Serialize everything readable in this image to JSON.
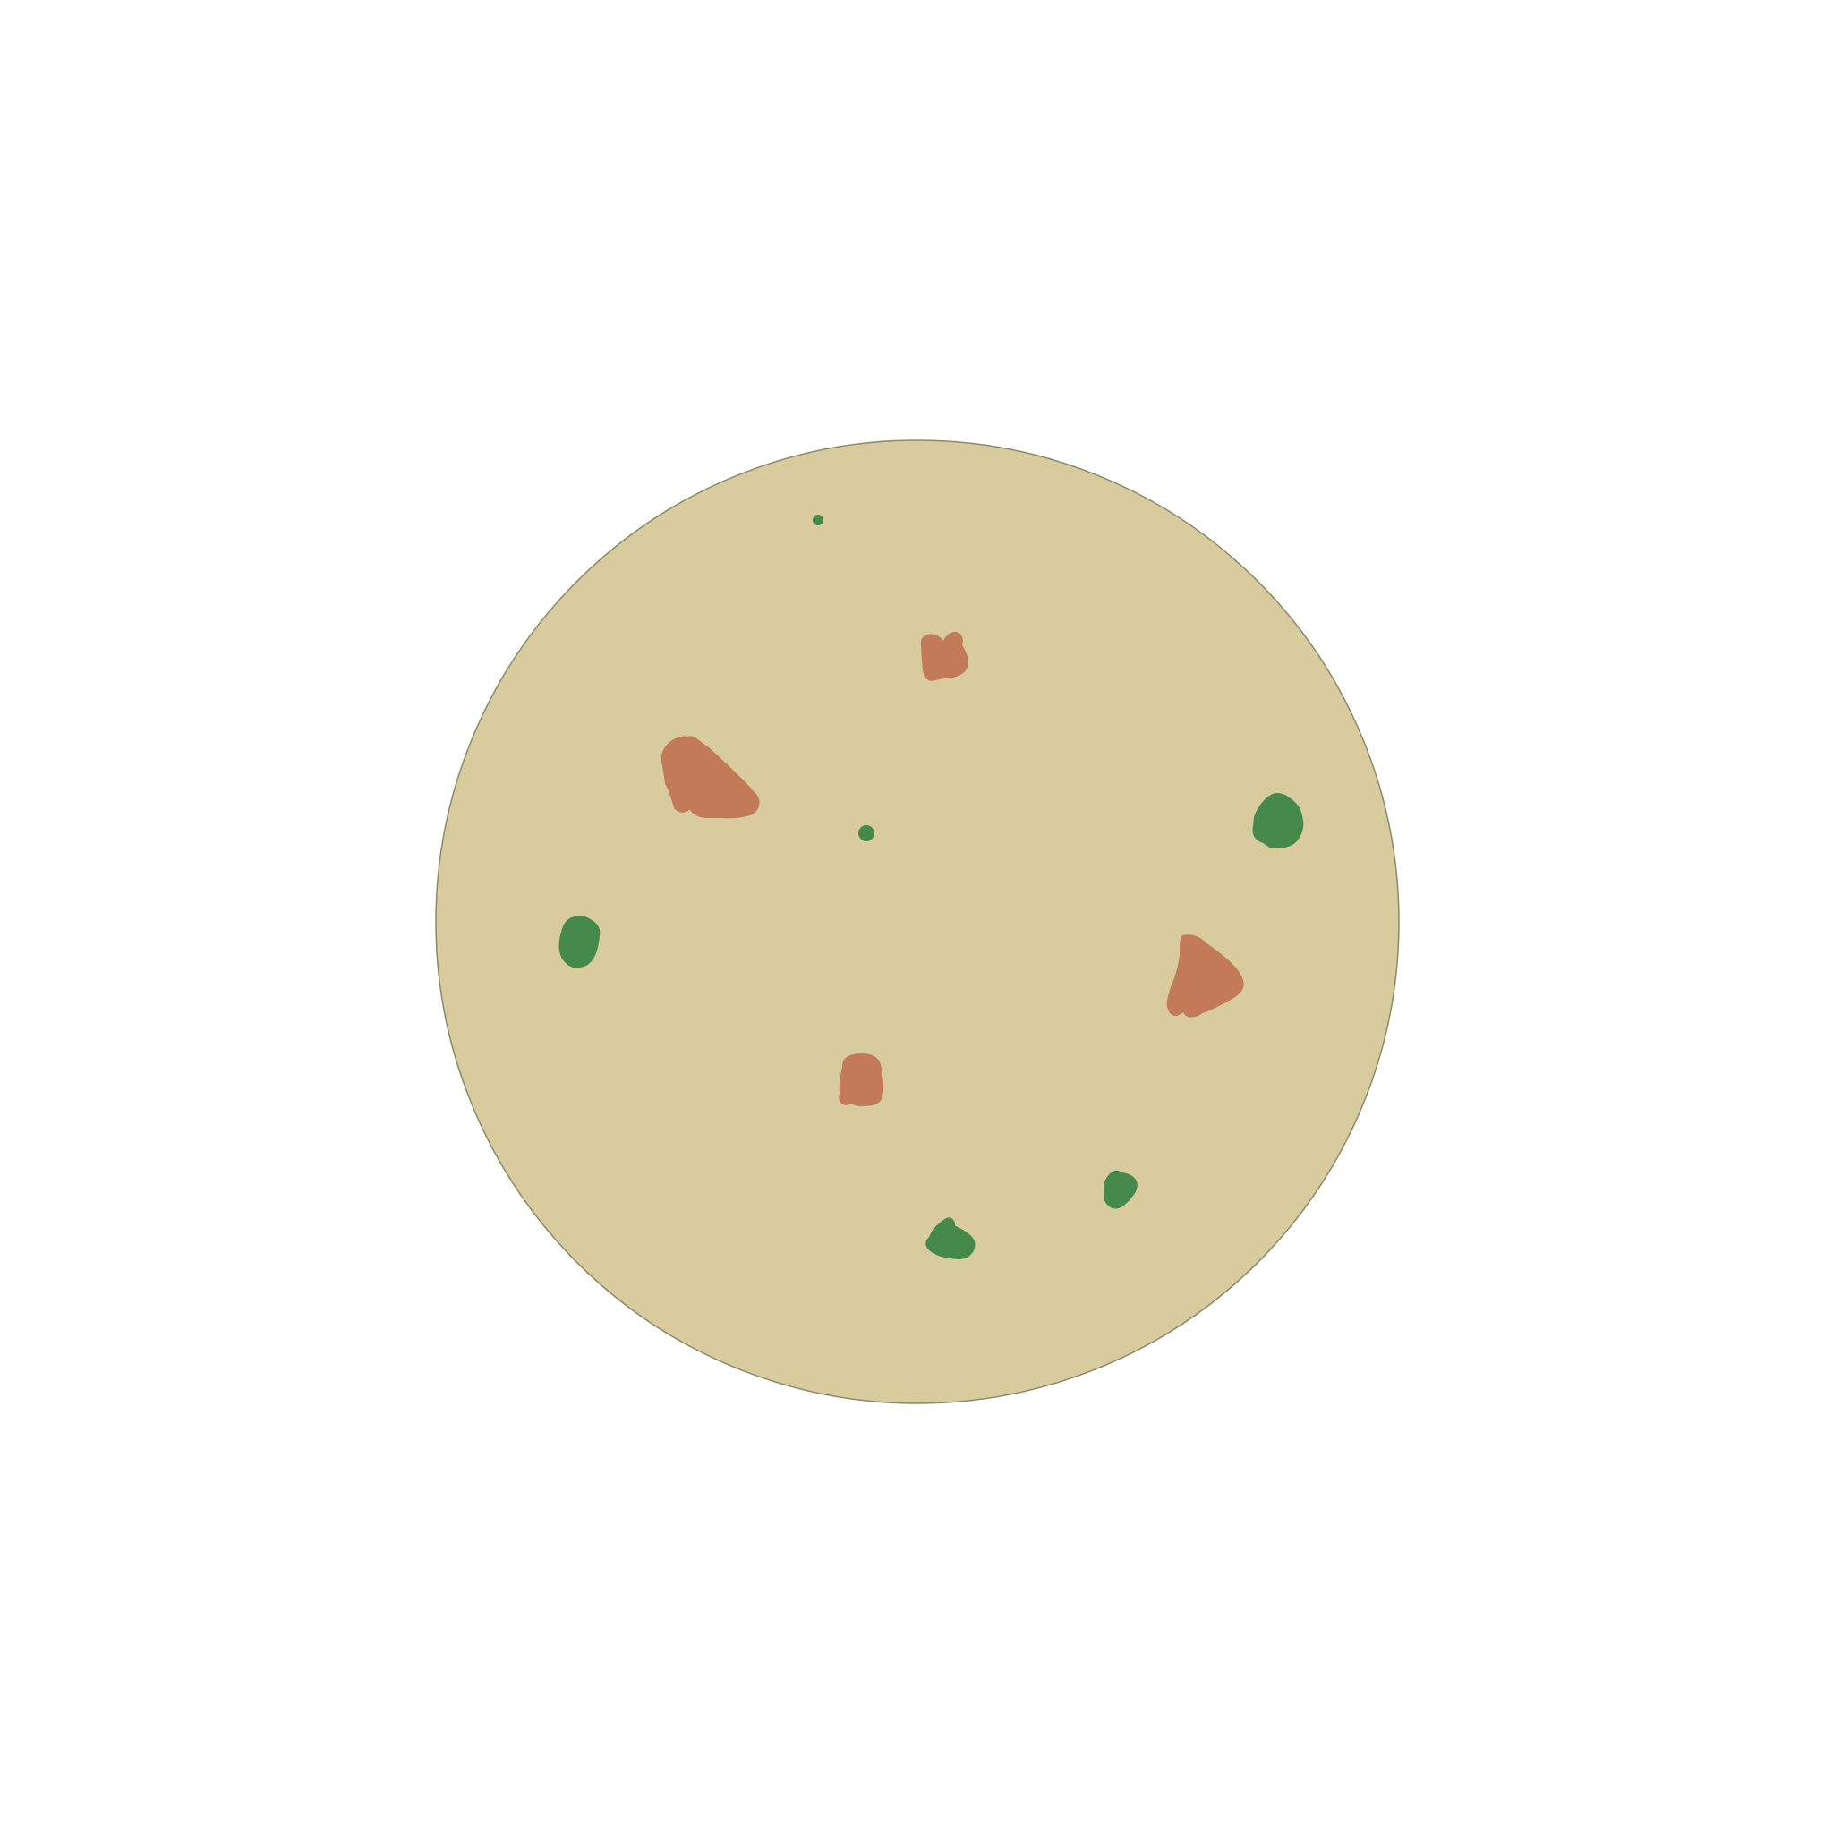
{
  "scene": {
    "subject": "pizza-top-view",
    "background_color": "#ffffff",
    "base": {
      "fill_color": "#d8cb9e",
      "outline_color": "#8a8a6a"
    },
    "toppings": [
      {
        "kind": "pepperoni-piece",
        "color": "#c27a58"
      },
      {
        "kind": "pepperoni-piece",
        "color": "#c27a58"
      },
      {
        "kind": "pepperoni-piece",
        "color": "#c27a58"
      },
      {
        "kind": "pepperoni-piece",
        "color": "#c27a58"
      },
      {
        "kind": "green-pepper-piece",
        "color": "#458a4a"
      },
      {
        "kind": "green-pepper-piece",
        "color": "#458a4a"
      },
      {
        "kind": "green-pepper-piece",
        "color": "#458a4a"
      },
      {
        "kind": "green-pepper-piece",
        "color": "#458a4a"
      },
      {
        "kind": "herb-speck",
        "color": "#458a4a"
      },
      {
        "kind": "herb-speck",
        "color": "#458a4a"
      }
    ]
  }
}
